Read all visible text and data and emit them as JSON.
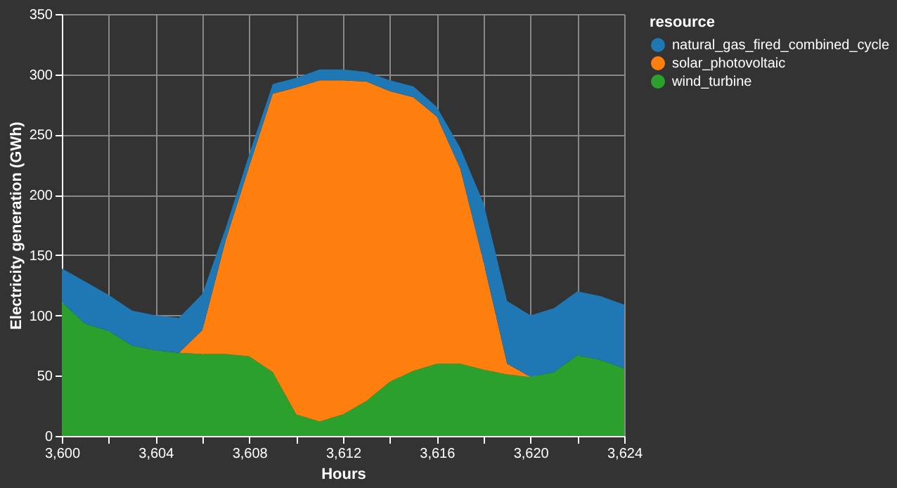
{
  "chart_data": {
    "type": "area",
    "xlabel": "Hours",
    "ylabel": "Electricity generation (GWh)",
    "legend_title": "resource",
    "stacked": true,
    "grid": true,
    "legend": "top right",
    "x": [
      3600,
      3601,
      3602,
      3603,
      3604,
      3605,
      3606,
      3607,
      3608,
      3609,
      3610,
      3611,
      3612,
      3613,
      3614,
      3615,
      3616,
      3617,
      3618,
      3619,
      3620,
      3621,
      3622,
      3623,
      3624
    ],
    "series": [
      {
        "name": "wind_turbine",
        "color": "#2ca02c",
        "values": [
          111,
          93,
          87,
          75,
          71,
          69,
          68,
          68,
          66,
          53,
          18,
          12,
          18,
          29,
          45,
          54,
          60,
          60,
          55,
          51,
          49,
          53,
          67,
          63,
          56
        ]
      },
      {
        "name": "solar_photovoltaic",
        "color": "#ff7f0e",
        "values": [
          0,
          0,
          0,
          0,
          0,
          0,
          20,
          95,
          158,
          231,
          271,
          283,
          277,
          265,
          241,
          227,
          205,
          162,
          89,
          9,
          0,
          0,
          0,
          0,
          0
        ]
      },
      {
        "name": "natural_gas_fired_combined_cycle",
        "color": "#1f77b4",
        "values": [
          28,
          35,
          30,
          29,
          29,
          29,
          30,
          10,
          10,
          8,
          8,
          9,
          9,
          8,
          9,
          9,
          8,
          17,
          49,
          52,
          51,
          53,
          53,
          53,
          53
        ]
      }
    ],
    "xlim": [
      3600,
      3624
    ],
    "xticks": [
      {
        "value": 3600,
        "label": "3,600"
      },
      {
        "value": 3602,
        "label": null
      },
      {
        "value": 3604,
        "label": "3,604"
      },
      {
        "value": 3606,
        "label": null
      },
      {
        "value": 3608,
        "label": "3,608"
      },
      {
        "value": 3610,
        "label": null
      },
      {
        "value": 3612,
        "label": "3,612"
      },
      {
        "value": 3614,
        "label": null
      },
      {
        "value": 3616,
        "label": "3,616"
      },
      {
        "value": 3618,
        "label": null
      },
      {
        "value": 3620,
        "label": "3,620"
      },
      {
        "value": 3622,
        "label": null
      },
      {
        "value": 3624,
        "label": "3,624"
      }
    ],
    "ylim": [
      0,
      350
    ],
    "yticks": [
      0,
      50,
      100,
      150,
      200,
      250,
      300,
      350
    ]
  }
}
